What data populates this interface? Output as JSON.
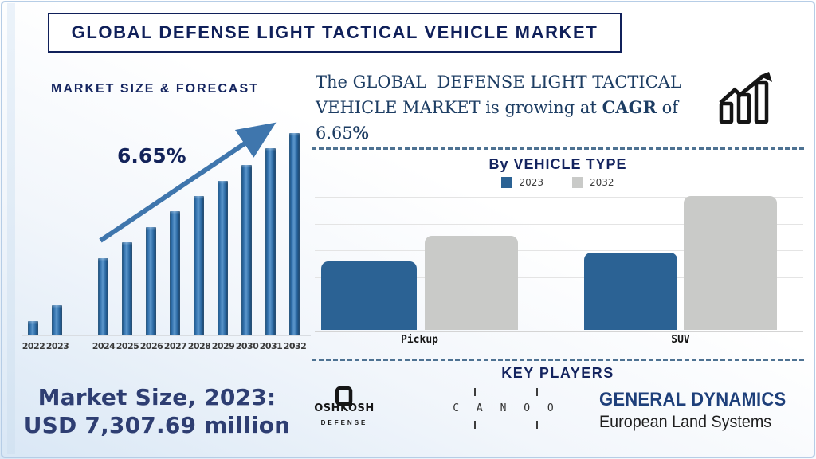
{
  "page": {
    "title": "GLOBAL DEFENSE LIGHT TACTICAL VEHICLE MARKET"
  },
  "forecast": {
    "heading": "MARKET SIZE & FORECAST",
    "cagr_label": "6.65%",
    "years": [
      "2022",
      "2023",
      "2024",
      "2025",
      "2026",
      "2027",
      "2028",
      "2029",
      "2030",
      "2031",
      "2032"
    ],
    "relative_heights": [
      0.071,
      0.15,
      0.382,
      0.461,
      0.535,
      0.614,
      0.689,
      0.764,
      0.843,
      0.925,
      1.0
    ]
  },
  "cagr_text": {
    "line1": "The GLOBAL  DEFENSE LIGHT TACTICAL",
    "line2_pre": "VEHICLE MARKET is growing at ",
    "line2_bold": "CAGR",
    "line2_post": " of",
    "line3_pre": "6.65",
    "line3_bold": "%"
  },
  "vehicle": {
    "heading": "By VEHICLE TYPE",
    "legend": [
      {
        "label": "2023",
        "color": "#2b6294"
      },
      {
        "label": "2032",
        "color": "#c9cac8"
      }
    ],
    "categories": [
      "Pickup",
      "SUV"
    ],
    "series": [
      {
        "name": "2023",
        "color": "#2b6294",
        "relative": [
          0.51,
          0.58
        ]
      },
      {
        "name": "2032",
        "color": "#c9cac8",
        "relative": [
          0.7,
          1.0
        ]
      }
    ]
  },
  "market_size": {
    "line1": "Market Size, 2023:",
    "line2": "USD 7,307.69 million"
  },
  "key_players": {
    "heading": "KEY PLAYERS",
    "oshkosh": {
      "name": "OSHKOSH",
      "sub": "DEFENSE"
    },
    "canoo": {
      "name": "C A N O O"
    },
    "general_dynamics": {
      "line1": "GENERAL DYNAMICS",
      "line2": "European Land Systems"
    }
  },
  "colors": {
    "navy_heading": "#14245f",
    "forecast_bar": "#2e6da8",
    "arrow": "#3f76ad",
    "vehicle_2023": "#2b6294",
    "vehicle_2032": "#c9cac8",
    "dashed_divider": "#4e7292",
    "market_size_text": "#2e3e72",
    "gd_logo": "#1e3f7a"
  },
  "chart_data": [
    {
      "type": "bar",
      "title": "MARKET SIZE & FORECAST",
      "categories": [
        "2022",
        "2023",
        "2024",
        "2025",
        "2026",
        "2027",
        "2028",
        "2029",
        "2030",
        "2031",
        "2032"
      ],
      "values": [
        0.071,
        0.15,
        0.382,
        0.461,
        0.535,
        0.614,
        0.689,
        0.764,
        0.843,
        0.925,
        1.0
      ],
      "value_scale": "relative bar heights 0-1; no numeric y-axis shown in image",
      "known_points": {
        "2023": "USD 7,307.69 million (stated in callout)"
      },
      "annotations": [
        "6.65% CAGR label with upward trend arrow across bars"
      ],
      "xlabel": "",
      "ylabel": "",
      "grid": false,
      "legend_position": "none"
    },
    {
      "type": "bar",
      "title": "By VEHICLE TYPE",
      "categories": [
        "Pickup",
        "SUV"
      ],
      "series": [
        {
          "name": "2023",
          "values": [
            0.51,
            0.58
          ]
        },
        {
          "name": "2032",
          "values": [
            0.7,
            1.0
          ]
        }
      ],
      "value_scale": "relative bar heights 0-1; no numeric y-axis shown in image",
      "xlabel": "",
      "ylabel": "",
      "grid": true,
      "legend_position": "top"
    }
  ]
}
